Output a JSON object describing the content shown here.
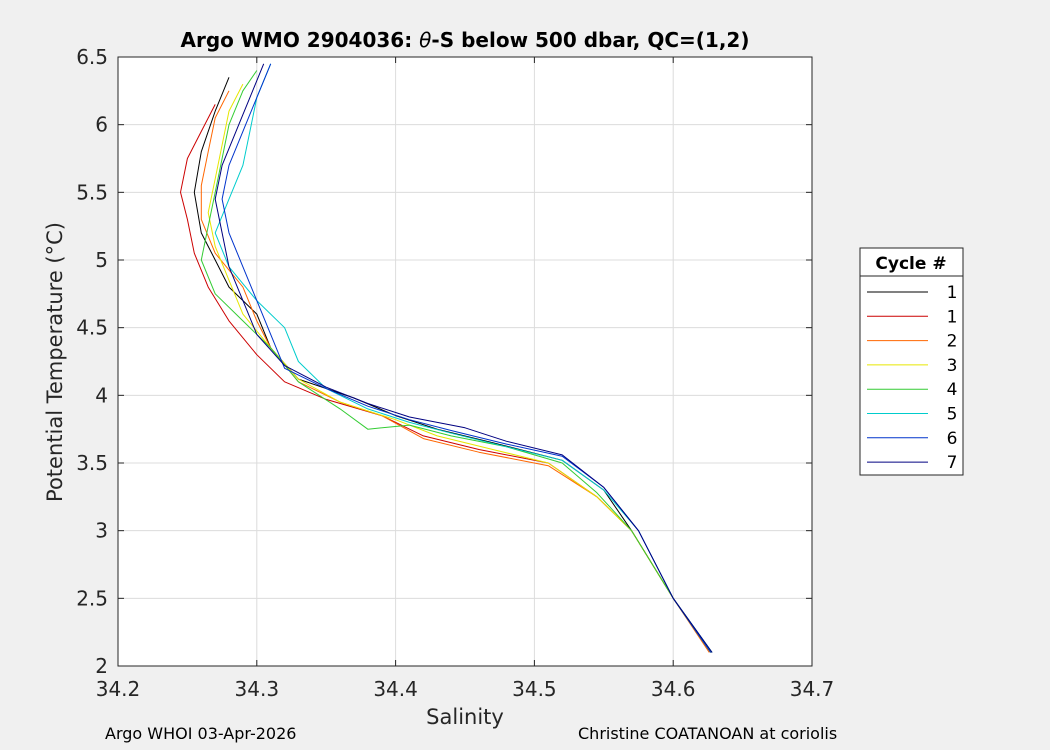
{
  "chart_data": {
    "type": "line",
    "title": "Argo WMO 2904036: θ-S below 500 dbar,  QC=(1,2)",
    "title_parts": {
      "prefix": "Argo WMO 2904036: ",
      "theta": "θ",
      "suffix": "-S below 500 dbar,  QC=(1,2)"
    },
    "xlabel": "Salinity",
    "ylabel": "Potential Temperature (°C)",
    "xlim": [
      34.2,
      34.7
    ],
    "ylim": [
      2,
      6.5
    ],
    "xticks": [
      34.2,
      34.3,
      34.4,
      34.5,
      34.6,
      34.7
    ],
    "xtick_labels": [
      "34.2",
      "34.3",
      "34.4",
      "34.5",
      "34.6",
      "34.7"
    ],
    "yticks": [
      2,
      2.5,
      3,
      3.5,
      4,
      4.5,
      5,
      5.5,
      6,
      6.5
    ],
    "ytick_labels": [
      "2",
      "2.5",
      "3",
      "3.5",
      "4",
      "4.5",
      "5",
      "5.5",
      "6",
      "6.5"
    ],
    "grid": true,
    "legend": {
      "title": "Cycle #",
      "placement": "right"
    },
    "series": [
      {
        "name": "1",
        "color": "#000000",
        "points": [
          [
            34.628,
            2.1
          ],
          [
            34.6,
            2.5
          ],
          [
            34.57,
            3.0
          ],
          [
            34.55,
            3.3
          ],
          [
            34.52,
            3.52
          ],
          [
            34.47,
            3.65
          ],
          [
            34.43,
            3.75
          ],
          [
            34.4,
            3.85
          ],
          [
            34.37,
            3.98
          ],
          [
            34.33,
            4.12
          ],
          [
            34.31,
            4.35
          ],
          [
            34.3,
            4.6
          ],
          [
            34.28,
            4.8
          ],
          [
            34.27,
            5.0
          ],
          [
            34.26,
            5.2
          ],
          [
            34.255,
            5.5
          ],
          [
            34.26,
            5.8
          ],
          [
            34.27,
            6.1
          ],
          [
            34.28,
            6.35
          ]
        ]
      },
      {
        "name": "1",
        "color": "#cc0000",
        "points": [
          [
            34.627,
            2.1
          ],
          [
            34.6,
            2.5
          ],
          [
            34.57,
            3.0
          ],
          [
            34.545,
            3.25
          ],
          [
            34.51,
            3.5
          ],
          [
            34.46,
            3.6
          ],
          [
            34.42,
            3.7
          ],
          [
            34.39,
            3.85
          ],
          [
            34.35,
            3.97
          ],
          [
            34.32,
            4.1
          ],
          [
            34.3,
            4.3
          ],
          [
            34.28,
            4.55
          ],
          [
            34.265,
            4.8
          ],
          [
            34.255,
            5.05
          ],
          [
            34.25,
            5.3
          ],
          [
            34.245,
            5.5
          ],
          [
            34.25,
            5.75
          ],
          [
            34.26,
            5.95
          ],
          [
            34.27,
            6.15
          ]
        ]
      },
      {
        "name": "2",
        "color": "#ff6600",
        "points": [
          [
            34.626,
            2.1
          ],
          [
            34.6,
            2.5
          ],
          [
            34.57,
            3.0
          ],
          [
            34.545,
            3.25
          ],
          [
            34.51,
            3.48
          ],
          [
            34.46,
            3.58
          ],
          [
            34.42,
            3.68
          ],
          [
            34.39,
            3.85
          ],
          [
            34.36,
            3.95
          ],
          [
            34.33,
            4.1
          ],
          [
            34.31,
            4.35
          ],
          [
            34.3,
            4.55
          ],
          [
            34.29,
            4.8
          ],
          [
            34.27,
            5.05
          ],
          [
            34.26,
            5.3
          ],
          [
            34.26,
            5.55
          ],
          [
            34.265,
            5.8
          ],
          [
            34.27,
            6.05
          ],
          [
            34.28,
            6.25
          ]
        ]
      },
      {
        "name": "3",
        "color": "#e6e600",
        "points": [
          [
            34.627,
            2.1
          ],
          [
            34.6,
            2.5
          ],
          [
            34.57,
            3.0
          ],
          [
            34.545,
            3.25
          ],
          [
            34.51,
            3.5
          ],
          [
            34.47,
            3.6
          ],
          [
            34.43,
            3.7
          ],
          [
            34.4,
            3.82
          ],
          [
            34.36,
            3.95
          ],
          [
            34.33,
            4.12
          ],
          [
            34.31,
            4.35
          ],
          [
            34.29,
            4.6
          ],
          [
            34.28,
            4.85
          ],
          [
            34.27,
            5.1
          ],
          [
            34.265,
            5.35
          ],
          [
            34.27,
            5.6
          ],
          [
            34.275,
            5.85
          ],
          [
            34.28,
            6.1
          ],
          [
            34.29,
            6.3
          ]
        ]
      },
      {
        "name": "4",
        "color": "#33cc33",
        "points": [
          [
            34.627,
            2.1
          ],
          [
            34.6,
            2.5
          ],
          [
            34.57,
            3.0
          ],
          [
            34.545,
            3.28
          ],
          [
            34.52,
            3.5
          ],
          [
            34.48,
            3.62
          ],
          [
            34.44,
            3.7
          ],
          [
            34.41,
            3.78
          ],
          [
            34.38,
            3.75
          ],
          [
            34.36,
            3.9
          ],
          [
            34.33,
            4.1
          ],
          [
            34.31,
            4.35
          ],
          [
            34.29,
            4.55
          ],
          [
            34.27,
            4.75
          ],
          [
            34.26,
            5.0
          ],
          [
            34.265,
            5.25
          ],
          [
            34.27,
            5.5
          ],
          [
            34.275,
            5.75
          ],
          [
            34.28,
            6.0
          ],
          [
            34.29,
            6.25
          ],
          [
            34.3,
            6.4
          ]
        ]
      },
      {
        "name": "5",
        "color": "#00cccc",
        "points": [
          [
            34.628,
            2.1
          ],
          [
            34.6,
            2.5
          ],
          [
            34.575,
            3.0
          ],
          [
            34.55,
            3.3
          ],
          [
            34.52,
            3.52
          ],
          [
            34.48,
            3.62
          ],
          [
            34.44,
            3.72
          ],
          [
            34.41,
            3.8
          ],
          [
            34.38,
            3.9
          ],
          [
            34.35,
            4.05
          ],
          [
            34.33,
            4.25
          ],
          [
            34.32,
            4.5
          ],
          [
            34.3,
            4.7
          ],
          [
            34.28,
            4.95
          ],
          [
            34.27,
            5.2
          ],
          [
            34.28,
            5.45
          ],
          [
            34.29,
            5.7
          ],
          [
            34.295,
            5.95
          ],
          [
            34.3,
            6.2
          ],
          [
            34.31,
            6.45
          ]
        ]
      },
      {
        "name": "6",
        "color": "#0033cc",
        "points": [
          [
            34.627,
            2.1
          ],
          [
            34.6,
            2.5
          ],
          [
            34.575,
            3.0
          ],
          [
            34.55,
            3.32
          ],
          [
            34.52,
            3.55
          ],
          [
            34.48,
            3.64
          ],
          [
            34.44,
            3.74
          ],
          [
            34.41,
            3.82
          ],
          [
            34.38,
            3.92
          ],
          [
            34.35,
            4.05
          ],
          [
            34.32,
            4.2
          ],
          [
            34.31,
            4.45
          ],
          [
            34.3,
            4.7
          ],
          [
            34.29,
            4.95
          ],
          [
            34.28,
            5.2
          ],
          [
            34.275,
            5.45
          ],
          [
            34.28,
            5.7
          ],
          [
            34.29,
            5.95
          ],
          [
            34.3,
            6.2
          ],
          [
            34.31,
            6.45
          ]
        ]
      },
      {
        "name": "7",
        "color": "#000080",
        "points": [
          [
            34.628,
            2.1
          ],
          [
            34.6,
            2.5
          ],
          [
            34.575,
            3.0
          ],
          [
            34.55,
            3.32
          ],
          [
            34.52,
            3.56
          ],
          [
            34.48,
            3.66
          ],
          [
            34.45,
            3.76
          ],
          [
            34.41,
            3.84
          ],
          [
            34.38,
            3.94
          ],
          [
            34.35,
            4.06
          ],
          [
            34.32,
            4.22
          ],
          [
            34.3,
            4.45
          ],
          [
            34.29,
            4.7
          ],
          [
            34.28,
            4.95
          ],
          [
            34.275,
            5.2
          ],
          [
            34.27,
            5.45
          ],
          [
            34.275,
            5.7
          ],
          [
            34.285,
            5.95
          ],
          [
            34.295,
            6.2
          ],
          [
            34.305,
            6.45
          ]
        ]
      }
    ]
  },
  "footer": {
    "left": "Argo WHOI 03-Apr-2026",
    "right": "Christine COATANOAN at coriolis"
  }
}
